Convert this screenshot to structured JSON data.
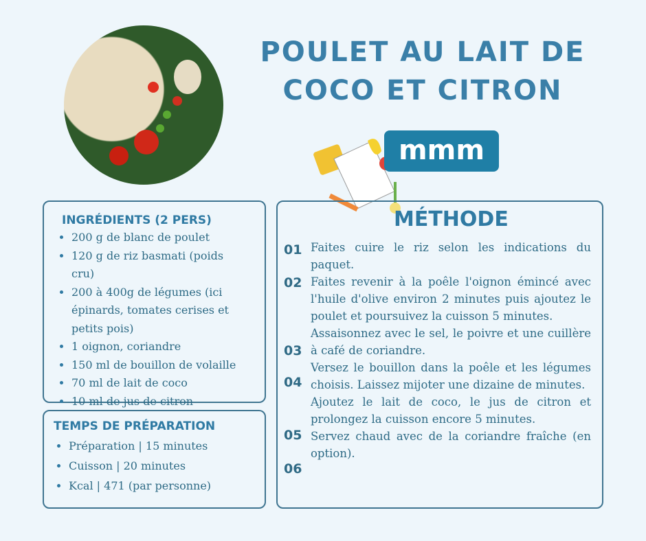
{
  "title": [
    "POULET AU LAIT DE",
    "COCO ET CITRON"
  ],
  "logo": "mmm",
  "ingredients": {
    "heading": "INGRÉDIENTS (2 PERS)",
    "items": [
      "200 g de blanc de poulet",
      "120 g de riz basmati (poids cru)",
      "200 à 400g de légumes (ici épinards, tomates cerises et petits pois)",
      "1 oignon, coriandre",
      "150 ml de bouillon de volaille",
      "70 ml de lait de coco",
      "10 ml de jus de citron"
    ]
  },
  "temps": {
    "heading": "TEMPS DE PRÉPARATION",
    "items": [
      "Préparation | 15 minutes",
      "Cuisson | 20 minutes",
      "Kcal | 471 (par personne)"
    ]
  },
  "methode": {
    "heading": "MÉTHODE",
    "steps": [
      {
        "num": "01",
        "text": "Faites cuire le riz selon les indications du paquet."
      },
      {
        "num": "02",
        "text": "Faites revenir à la poêle l'oignon émincé avec l'huile d'olive environ 2 minutes puis ajoutez le poulet et poursuivez la cuisson 5 minutes."
      },
      {
        "num": "03",
        "text": "Assaisonnez avec le sel, le poivre et une cuillère à café de coriandre."
      },
      {
        "num": "04",
        "text": "Versez le bouillon dans la poêle et les légumes choisis. Laissez mijoter une dizaine de minutes."
      },
      {
        "num": "05",
        "text": "Ajoutez le lait de coco, le jus de citron et prolongez la cuisson encore 5 minutes."
      },
      {
        "num": "06",
        "text": "Servez chaud avec de la coriandre fraîche (en option)."
      }
    ]
  }
}
